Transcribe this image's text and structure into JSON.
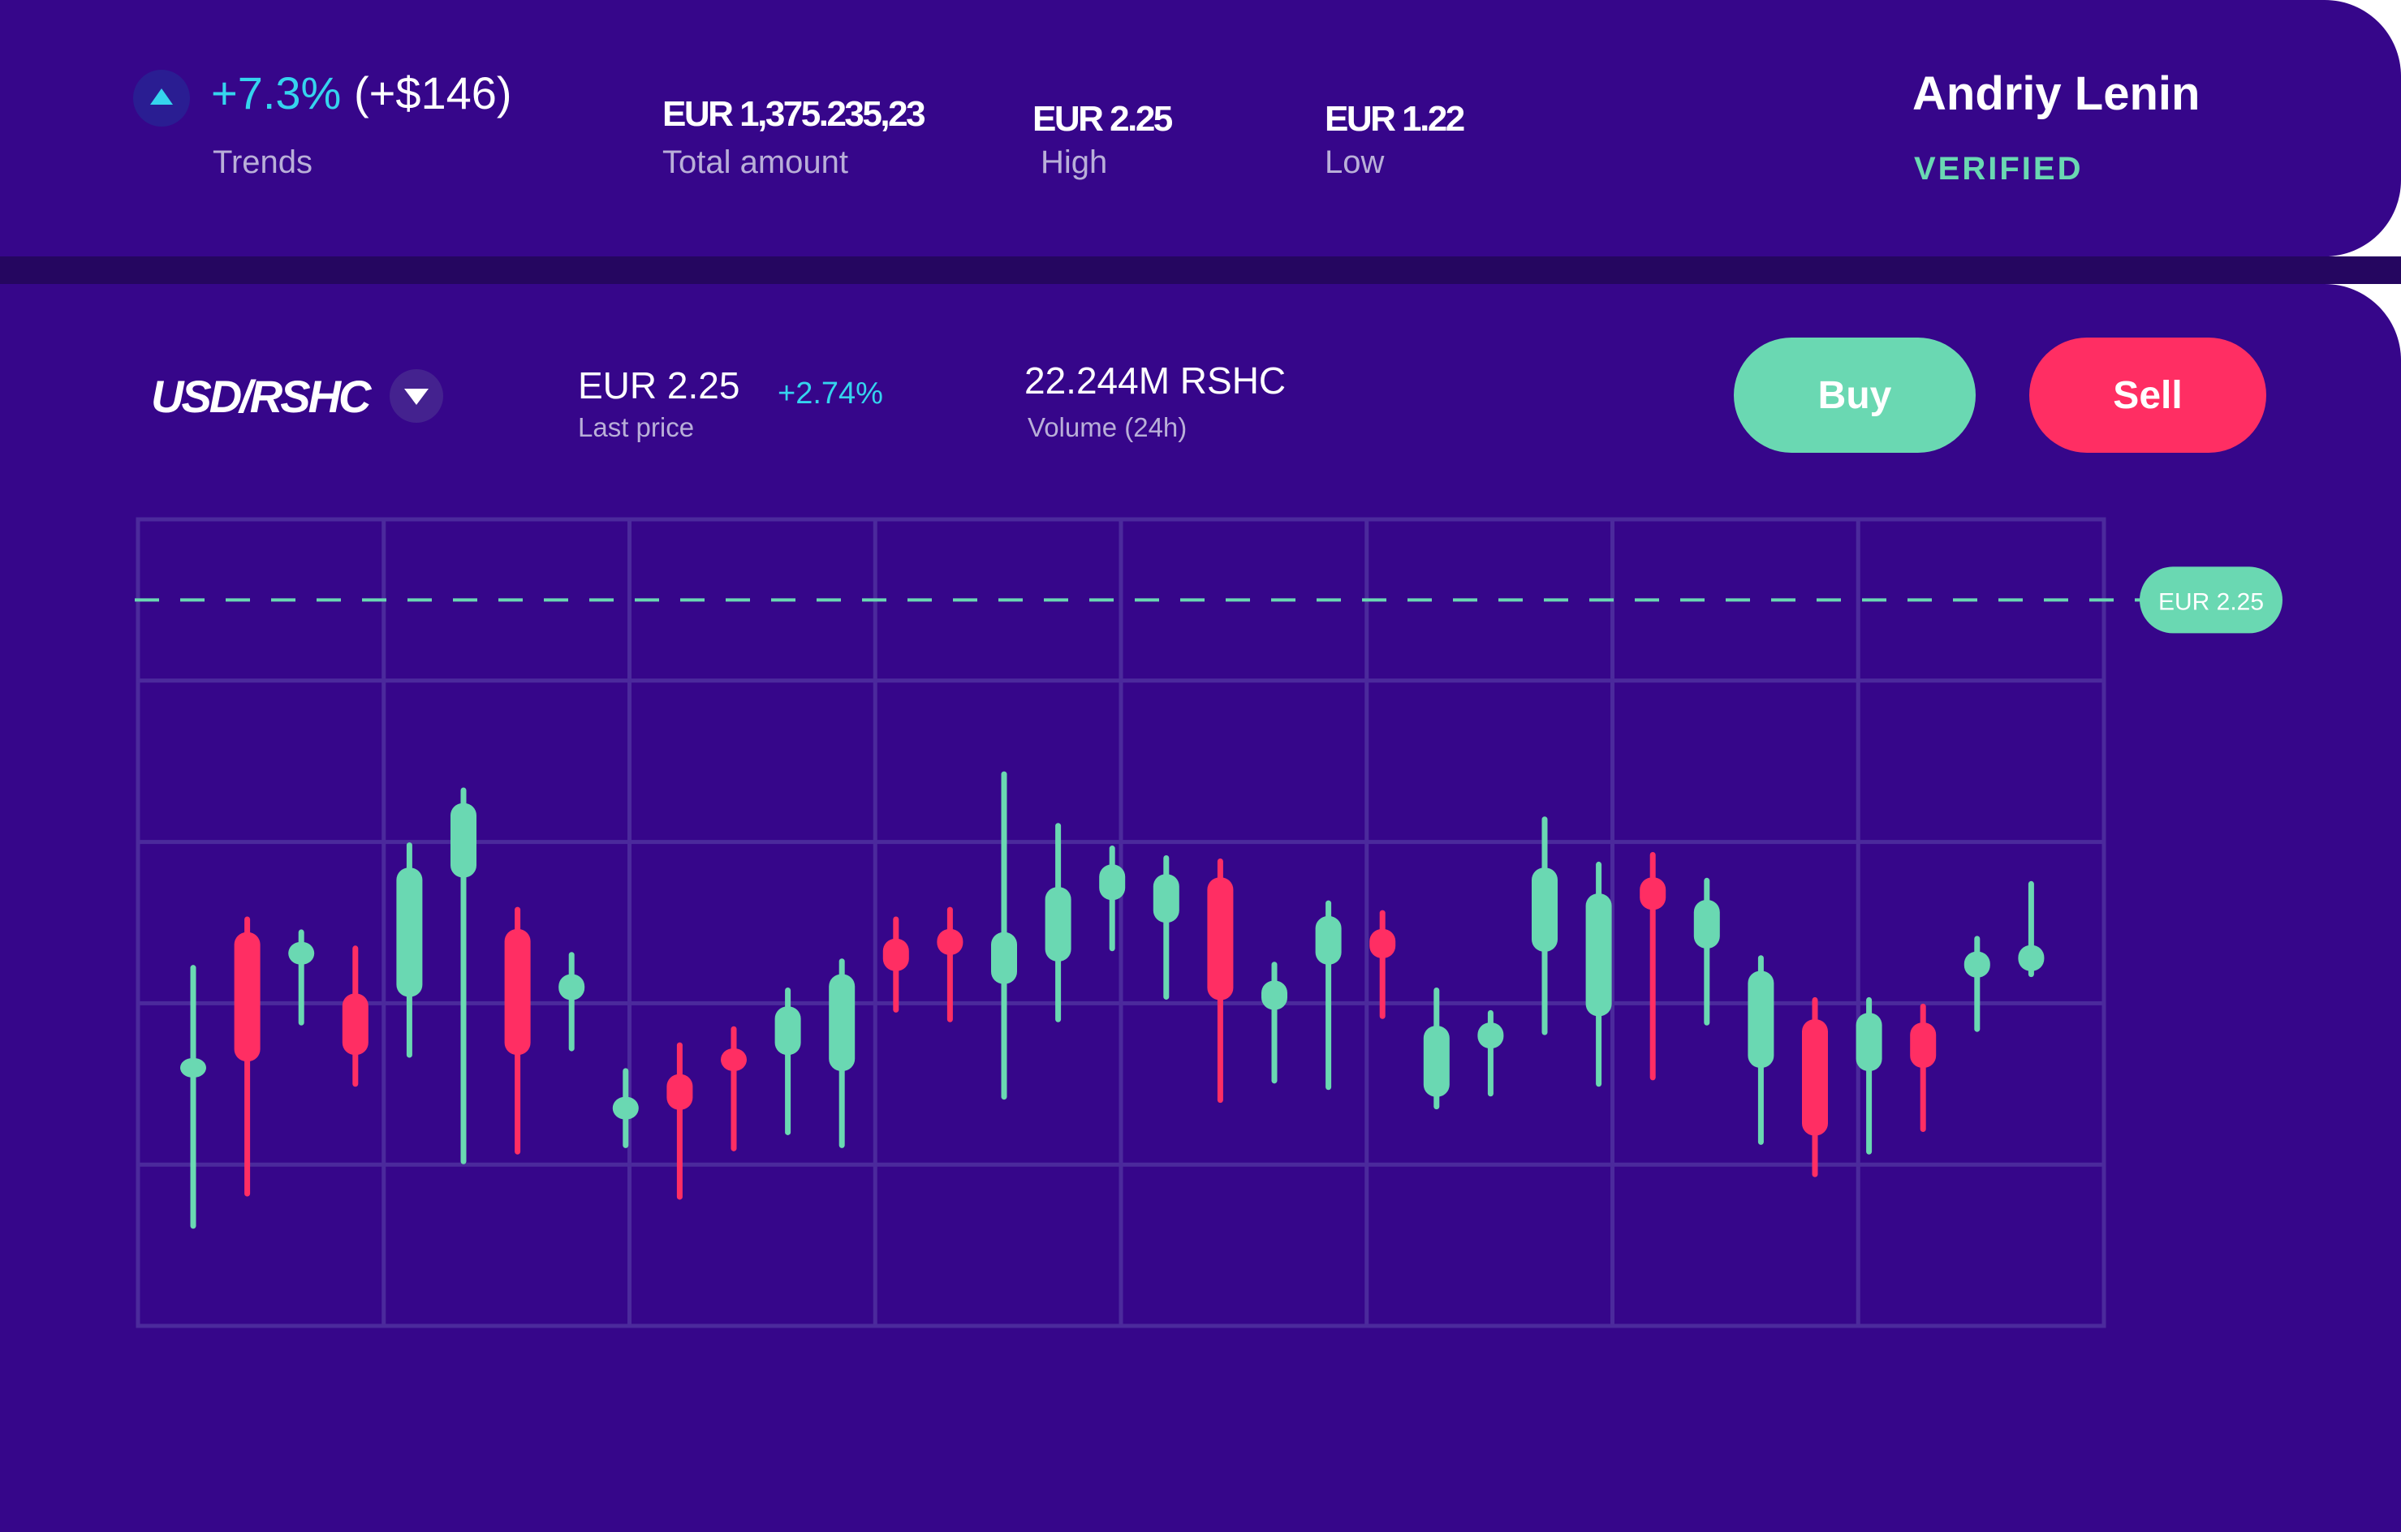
{
  "header": {
    "trend": {
      "percent": "+7.3%",
      "amount": "(+$146)",
      "label": "Trends",
      "icon": "triangle-up-icon",
      "color": "#35d4ee"
    },
    "total": {
      "value": "EUR 1,375.235,23",
      "label": "Total amount"
    },
    "high": {
      "value": "EUR 2.25",
      "label": "High"
    },
    "low": {
      "value": "EUR 1.22",
      "label": "Low"
    },
    "user": {
      "name": "Andriy Lenin",
      "status": "VERIFIED"
    }
  },
  "market": {
    "pair": "USD/RSHC",
    "pair_icon": "chevron-down-icon",
    "last_price": "EUR 2.25",
    "last_price_label": "Last price",
    "change": "+2.74%",
    "volume": "22.244M RSHC",
    "volume_label": "Volume (24h)",
    "buy_label": "Buy",
    "sell_label": "Sell"
  },
  "colors": {
    "background": "#36068a",
    "separator": "#250660",
    "bullish": "#6ad8b2",
    "bearish": "#ff2e63",
    "accent": "#35d4ee",
    "grid": "#4b2a9c"
  },
  "chart_data": {
    "type": "candlestick",
    "grid": true,
    "y_axis_labels_shown": false,
    "price_line": {
      "label": "EUR 2.25",
      "value": 2.25
    },
    "candles": [
      {
        "open": 0.77,
        "close": 0.83,
        "high": 1.11,
        "low": 0.31,
        "dir": "up"
      },
      {
        "open": 1.22,
        "close": 0.82,
        "high": 1.26,
        "low": 0.41,
        "dir": "down"
      },
      {
        "open": 1.12,
        "close": 1.19,
        "high": 1.22,
        "low": 0.94,
        "dir": "up"
      },
      {
        "open": 1.03,
        "close": 0.84,
        "high": 1.17,
        "low": 0.75,
        "dir": "down"
      },
      {
        "open": 1.02,
        "close": 1.42,
        "high": 1.49,
        "low": 0.84,
        "dir": "up"
      },
      {
        "open": 1.39,
        "close": 1.62,
        "high": 1.66,
        "low": 0.51,
        "dir": "up"
      },
      {
        "open": 1.23,
        "close": 0.84,
        "high": 1.29,
        "low": 0.54,
        "dir": "down"
      },
      {
        "open": 1.01,
        "close": 1.09,
        "high": 1.15,
        "low": 0.86,
        "dir": "up"
      },
      {
        "open": 0.64,
        "close": 0.71,
        "high": 0.79,
        "low": 0.56,
        "dir": "up"
      },
      {
        "open": 0.78,
        "close": 0.67,
        "high": 0.87,
        "low": 0.4,
        "dir": "down"
      },
      {
        "open": 0.86,
        "close": 0.79,
        "high": 0.92,
        "low": 0.55,
        "dir": "down"
      },
      {
        "open": 0.84,
        "close": 0.99,
        "high": 1.04,
        "low": 0.6,
        "dir": "up"
      },
      {
        "open": 0.79,
        "close": 1.09,
        "high": 1.13,
        "low": 0.56,
        "dir": "up"
      },
      {
        "open": 1.2,
        "close": 1.1,
        "high": 1.26,
        "low": 0.98,
        "dir": "down"
      },
      {
        "open": 1.23,
        "close": 1.15,
        "high": 1.29,
        "low": 0.95,
        "dir": "down"
      },
      {
        "open": 1.06,
        "close": 1.22,
        "high": 1.71,
        "low": 0.71,
        "dir": "up"
      },
      {
        "open": 1.13,
        "close": 1.36,
        "high": 1.55,
        "low": 0.95,
        "dir": "up"
      },
      {
        "open": 1.32,
        "close": 1.43,
        "high": 1.48,
        "low": 1.17,
        "dir": "up"
      },
      {
        "open": 1.25,
        "close": 1.4,
        "high": 1.45,
        "low": 1.02,
        "dir": "up"
      },
      {
        "open": 1.39,
        "close": 1.01,
        "high": 1.44,
        "low": 0.7,
        "dir": "down"
      },
      {
        "open": 0.98,
        "close": 1.07,
        "high": 1.12,
        "low": 0.76,
        "dir": "up"
      },
      {
        "open": 1.12,
        "close": 1.27,
        "high": 1.31,
        "low": 0.74,
        "dir": "up"
      },
      {
        "open": 1.23,
        "close": 1.14,
        "high": 1.28,
        "low": 0.96,
        "dir": "down"
      },
      {
        "open": 0.71,
        "close": 0.93,
        "high": 1.04,
        "low": 0.68,
        "dir": "up"
      },
      {
        "open": 0.86,
        "close": 0.94,
        "high": 0.97,
        "low": 0.72,
        "dir": "up"
      },
      {
        "open": 1.16,
        "close": 1.42,
        "high": 1.57,
        "low": 0.91,
        "dir": "up"
      },
      {
        "open": 0.96,
        "close": 1.34,
        "high": 1.43,
        "low": 0.75,
        "dir": "up"
      },
      {
        "open": 1.39,
        "close": 1.29,
        "high": 1.46,
        "low": 0.77,
        "dir": "down"
      },
      {
        "open": 1.17,
        "close": 1.32,
        "high": 1.38,
        "low": 0.94,
        "dir": "up"
      },
      {
        "open": 0.8,
        "close": 1.1,
        "high": 1.14,
        "low": 0.57,
        "dir": "up"
      },
      {
        "open": 0.95,
        "close": 0.59,
        "high": 1.01,
        "low": 0.47,
        "dir": "down"
      },
      {
        "open": 0.79,
        "close": 0.97,
        "high": 1.01,
        "low": 0.54,
        "dir": "up"
      },
      {
        "open": 0.94,
        "close": 0.8,
        "high": 0.99,
        "low": 0.61,
        "dir": "down"
      },
      {
        "open": 1.08,
        "close": 1.16,
        "high": 1.2,
        "low": 0.92,
        "dir": "up"
      },
      {
        "open": 1.1,
        "close": 1.18,
        "high": 1.37,
        "low": 1.09,
        "dir": "up"
      }
    ]
  }
}
